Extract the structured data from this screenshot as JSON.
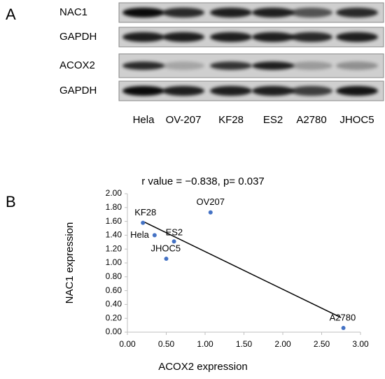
{
  "blot": {
    "panel_label": "A",
    "rows": [
      "NAC1",
      "GAPDH",
      "ACOX2",
      "GAPDH"
    ],
    "lanes": [
      "Hela",
      "OV-207",
      "KF28",
      "ES2",
      "A2780",
      "JHOC5"
    ]
  },
  "chart_data": {
    "type": "scatter",
    "panel_label": "B",
    "title": "r value = −0.838, p= 0.037",
    "x_label": "ACOX2 expression",
    "y_label": "NAC1 expression",
    "labels": [
      "Hela",
      "OV207",
      "KF28",
      "ES2",
      "JHOC5",
      "A2780"
    ],
    "x": [
      0.35,
      1.07,
      0.2,
      0.6,
      0.5,
      2.78
    ],
    "y": [
      1.4,
      1.73,
      1.58,
      1.31,
      1.06,
      0.06
    ],
    "color": "#4472c4",
    "trendline": {
      "x": [
        0.2,
        2.75
      ],
      "y": [
        1.6,
        0.21
      ]
    },
    "xlim": [
      0,
      3
    ],
    "ylim": [
      0,
      2
    ],
    "xticks": [
      {
        "value": 0,
        "label": "0.00"
      },
      {
        "value": 0.5,
        "label": "0.50"
      },
      {
        "value": 1,
        "label": "1.00"
      },
      {
        "value": 1.5,
        "label": "1.50"
      },
      {
        "value": 2,
        "label": "2.00"
      },
      {
        "value": 2.5,
        "label": "2.50"
      },
      {
        "value": 3,
        "label": "3.00"
      }
    ],
    "yticks": [
      {
        "value": 0,
        "label": "0.00"
      },
      {
        "value": 0.2,
        "label": "0.20"
      },
      {
        "value": 0.4,
        "label": "0.40"
      },
      {
        "value": 0.6,
        "label": "0.60"
      },
      {
        "value": 0.8,
        "label": "0.80"
      },
      {
        "value": 1,
        "label": "1.00"
      },
      {
        "value": 1.2,
        "label": "1.20"
      },
      {
        "value": 1.4,
        "label": "1.40"
      },
      {
        "value": 1.6,
        "label": "1.60"
      },
      {
        "value": 1.8,
        "label": "1.80"
      },
      {
        "value": 2,
        "label": "2.00"
      }
    ]
  }
}
